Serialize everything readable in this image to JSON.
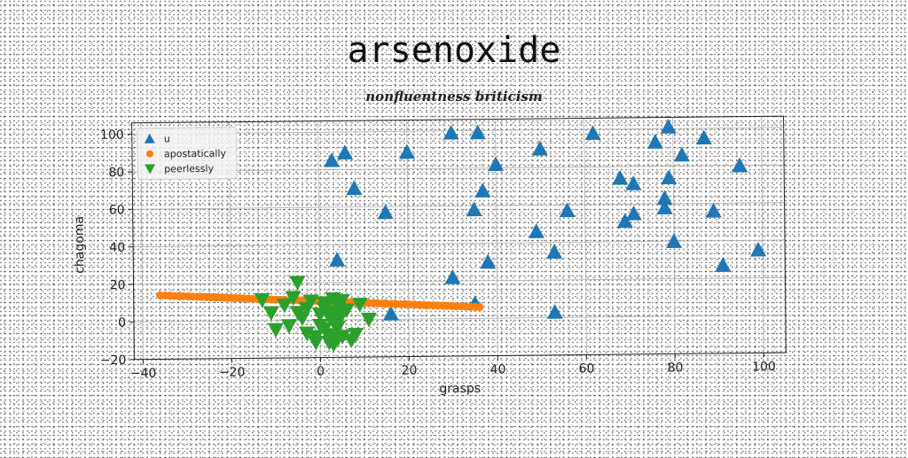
{
  "title": "arsenoxide",
  "subtitle": "nonfluentness briticism",
  "chart_data": {
    "type": "scatter",
    "xlabel": "grasps",
    "ylabel": "chagoma",
    "xlim": [
      -42,
      105
    ],
    "ylim": [
      -20,
      106
    ],
    "xticks": [
      -40,
      -20,
      0,
      20,
      40,
      60,
      80,
      100
    ],
    "yticks": [
      -20,
      0,
      20,
      40,
      60,
      80,
      100
    ],
    "grid": true,
    "legend": "top-left",
    "series": [
      {
        "name": "u",
        "marker": "triangle-up",
        "color": "#1f77b4",
        "points": [
          [
            3,
            85
          ],
          [
            6,
            89
          ],
          [
            8,
            70
          ],
          [
            4,
            32
          ],
          [
            15,
            57
          ],
          [
            20,
            89
          ],
          [
            16,
            3
          ],
          [
            30,
            99
          ],
          [
            36,
            99
          ],
          [
            40,
            82
          ],
          [
            37,
            68
          ],
          [
            35,
            58
          ],
          [
            38,
            30
          ],
          [
            30,
            22
          ],
          [
            35,
            8
          ],
          [
            50,
            90
          ],
          [
            49,
            46
          ],
          [
            53,
            35
          ],
          [
            53,
            3
          ],
          [
            56,
            57
          ],
          [
            62,
            98
          ],
          [
            68,
            74
          ],
          [
            71,
            71
          ],
          [
            69,
            51
          ],
          [
            71,
            55
          ],
          [
            76,
            93
          ],
          [
            78,
            63
          ],
          [
            78,
            58
          ],
          [
            79,
            74
          ],
          [
            79,
            101
          ],
          [
            82,
            86
          ],
          [
            80,
            40
          ],
          [
            87,
            95
          ],
          [
            89,
            56
          ],
          [
            91,
            27
          ],
          [
            95,
            80
          ],
          [
            99,
            35
          ]
        ]
      },
      {
        "name": "apostatically",
        "marker": "circle",
        "color": "#ff7f0e",
        "line": {
          "x_start": -36,
          "y_start": 14,
          "x_end": 36,
          "y_end": 6,
          "count": 70
        }
      },
      {
        "name": "peerlessly",
        "marker": "triangle-down",
        "color": "#2ca02c",
        "points": [
          [
            -13,
            11
          ],
          [
            -11,
            4
          ],
          [
            -10,
            -5
          ],
          [
            -8,
            8
          ],
          [
            -7,
            -3
          ],
          [
            -6,
            12
          ],
          [
            -5,
            20
          ],
          [
            -5,
            4
          ],
          [
            -4,
            1
          ],
          [
            -3,
            -7
          ],
          [
            -3,
            6
          ],
          [
            -2,
            10
          ],
          [
            -1,
            -12
          ],
          [
            0,
            3
          ],
          [
            0,
            -3
          ],
          [
            1,
            6
          ],
          [
            1,
            9
          ],
          [
            1,
            -5
          ],
          [
            2,
            2
          ],
          [
            2,
            -8
          ],
          [
            3,
            11
          ],
          [
            3,
            4
          ],
          [
            3,
            -1
          ],
          [
            3,
            -13
          ],
          [
            4,
            7
          ],
          [
            4,
            -4
          ],
          [
            4,
            0
          ],
          [
            4,
            -10
          ],
          [
            5,
            3
          ],
          [
            5,
            -9
          ],
          [
            5,
            10
          ],
          [
            6,
            5
          ],
          [
            7,
            -11
          ],
          [
            8,
            -8
          ],
          [
            9,
            8
          ],
          [
            11,
            0
          ],
          [
            -1,
            -9
          ],
          [
            2,
            -12
          ]
        ]
      }
    ]
  }
}
